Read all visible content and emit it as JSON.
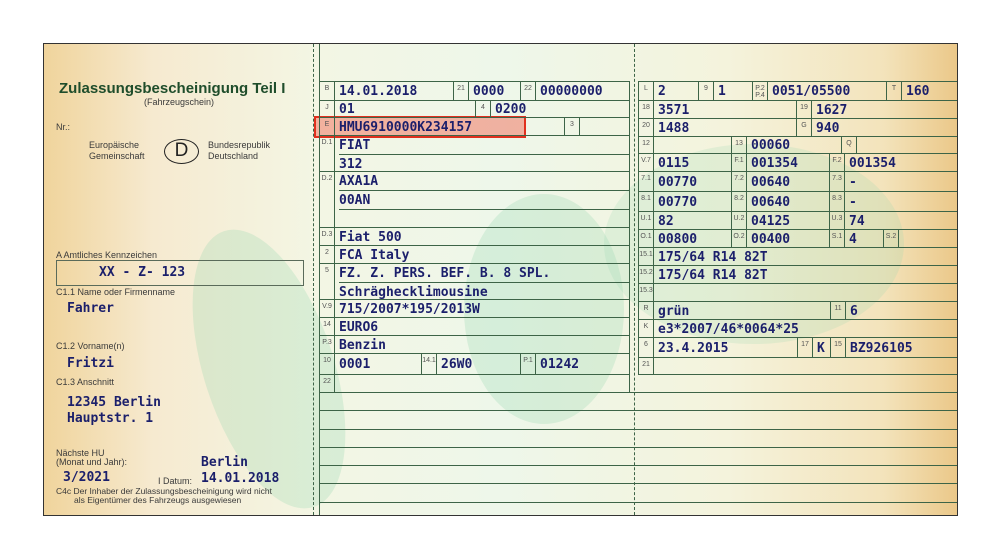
{
  "left": {
    "title": "Zulassungsbescheinigung Teil I",
    "subtitle": "(Fahrzeugschein)",
    "nr_label": "Nr.:",
    "eu_line1": "Europäische",
    "eu_line2": "Gemeinschaft",
    "country_code": "D",
    "brd_line1": "Bundesrepublik",
    "brd_line2": "Deutschland",
    "plate_label": "A Amtliches Kennzeichen",
    "plate_value": "XX - Z- 123",
    "name_label": "C1.1 Name oder Firmenname",
    "name_value": "Fahrer",
    "firstname_label": "C1.2 Vorname(n)",
    "firstname_value": "Fritzi",
    "address_label": "C1.3 Anschnitt",
    "address_line1": "12345 Berlin",
    "address_line2": "Hauptstr. 1",
    "hu_label1": "Nächste HU",
    "hu_label2": "(Monat und Jahr):",
    "hu_value": "3/2021",
    "issue_place": "Berlin",
    "date_label": "I Datum:",
    "date_value": "14.01.2018",
    "c4c_line1": "C4c Der Inhaber der Zulassungsbescheinigung wird nicht",
    "c4c_line2": "als Eigentümer des Fahrzeugs ausgewiesen"
  },
  "fields": [
    {
      "code": "B",
      "value": [
        "14.01.2018"
      ]
    },
    {
      "code": "21",
      "value": [
        "0000"
      ]
    },
    {
      "code": "22",
      "value": [
        "00000000"
      ]
    },
    {
      "code": "J",
      "value": [
        "01"
      ]
    },
    {
      "code": "4",
      "value": [
        "0200"
      ]
    },
    {
      "code": "E",
      "value": [
        "HMU6910000K234157"
      ]
    },
    {
      "code": "3",
      "value": [
        ""
      ]
    },
    {
      "code": "D.1",
      "value": [
        "FIAT",
        "312"
      ]
    },
    {
      "code": "D.2",
      "value": [
        "AXA1A",
        "00AN",
        ""
      ]
    },
    {
      "code": "D.3",
      "value": [
        "Fiat 500"
      ]
    },
    {
      "code": "2",
      "value": [
        "FCA Italy"
      ]
    },
    {
      "code": "5",
      "value": [
        "FZ. Z. PERS. BEF. B. 8 SPL.",
        "Schrägheckl­imousine"
      ]
    },
    {
      "code": "V.9",
      "value": [
        "715/2007*195/2013W"
      ]
    },
    {
      "code": "14",
      "value": [
        "EURO6"
      ]
    },
    {
      "code": "P.3",
      "value": [
        "Benzin"
      ]
    },
    {
      "code": "10",
      "value": [
        "0001"
      ]
    },
    {
      "code": "14.1",
      "value": [
        "26W0"
      ]
    },
    {
      "code": "P.1",
      "value": [
        "01242"
      ]
    },
    {
      "code": "22",
      "value": [
        ""
      ]
    },
    {
      "code": "L",
      "value": [
        "2"
      ]
    },
    {
      "code": "9",
      "value": [
        "1"
      ]
    },
    {
      "code": "P.2 P.4",
      "value": [
        "0051/05500"
      ]
    },
    {
      "code": "T",
      "value": [
        "160"
      ]
    },
    {
      "code": "18",
      "value": [
        "3571"
      ]
    },
    {
      "code": "19",
      "value": [
        "1627"
      ]
    },
    {
      "code": "20",
      "value": [
        "1488"
      ]
    },
    {
      "code": "G",
      "value": [
        "940"
      ]
    },
    {
      "code": "12",
      "value": [
        ""
      ]
    },
    {
      "code": "13",
      "value": [
        "00060"
      ]
    },
    {
      "code": "Q",
      "value": [
        ""
      ]
    },
    {
      "code": "V.7",
      "value": [
        "0115"
      ]
    },
    {
      "code": "F.1",
      "value": [
        "001354"
      ]
    },
    {
      "code": "F.2",
      "value": [
        "001354"
      ]
    },
    {
      "code": "7.1",
      "value": [
        "00770"
      ]
    },
    {
      "code": "7.2",
      "value": [
        "00640"
      ]
    },
    {
      "code": "7.3",
      "value": [
        "-"
      ]
    },
    {
      "code": "8.1",
      "value": [
        "00770"
      ]
    },
    {
      "code": "8.2",
      "value": [
        "00640"
      ]
    },
    {
      "code": "8.3",
      "value": [
        "-"
      ]
    },
    {
      "code": "U.1",
      "value": [
        "82"
      ]
    },
    {
      "code": "U.2",
      "value": [
        "04125"
      ]
    },
    {
      "code": "U.3",
      "value": [
        "74"
      ]
    },
    {
      "code": "O.1",
      "value": [
        "00800"
      ]
    },
    {
      "code": "O.2",
      "value": [
        "00400"
      ]
    },
    {
      "code": "S.1",
      "value": [
        "4"
      ]
    },
    {
      "code": "S.2",
      "value": [
        ""
      ]
    },
    {
      "code": "15.1",
      "value": [
        "175/64 R14 82T"
      ]
    },
    {
      "code": "15.2",
      "value": [
        "175/64 R14 82T"
      ]
    },
    {
      "code": "15.3",
      "value": [
        ""
      ]
    },
    {
      "code": "R",
      "value": [
        "grün"
      ]
    },
    {
      "code": "11",
      "value": [
        "6"
      ]
    },
    {
      "code": "K",
      "value": [
        "e3*2007/46*0064*25"
      ]
    },
    {
      "code": "6",
      "value": [
        "23.4.2015"
      ]
    },
    {
      "code": "17",
      "value": [
        "K"
      ]
    },
    {
      "code": "15",
      "value": [
        "BZ926105"
      ]
    },
    {
      "code": "21",
      "value": [
        ""
      ]
    }
  ],
  "highlight": {
    "field": "E",
    "color": "#e0301e"
  }
}
